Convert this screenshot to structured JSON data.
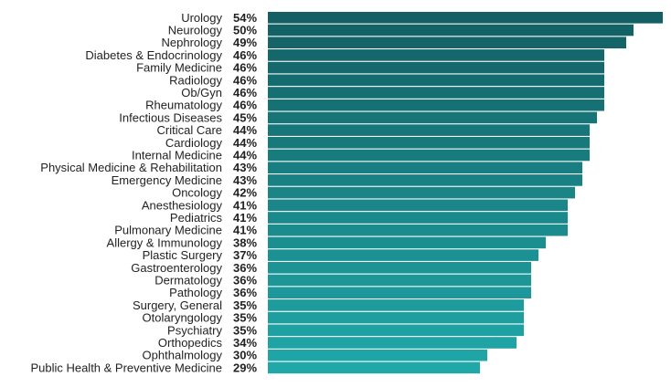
{
  "chart_data": {
    "type": "bar",
    "orientation": "horizontal",
    "title": "",
    "xlabel": "",
    "ylabel": "",
    "grid": false,
    "categories": [
      "Urology",
      "Neurology",
      "Nephrology",
      "Diabetes & Endocrinology",
      "Family Medicine",
      "Radiology",
      "Ob/Gyn",
      "Rheumatology",
      "Infectious Diseases",
      "Critical Care",
      "Cardiology",
      "Internal Medicine",
      "Physical Medicine & Rehabilitation",
      "Emergency Medicine",
      "Oncology",
      "Anesthesiology",
      "Pediatrics",
      "Pulmonary Medicine",
      "Allergy & Immunology",
      "Plastic Surgery",
      "Gastroenterology",
      "Dermatology",
      "Pathology",
      "Surgery, General",
      "Otolaryngology",
      "Psychiatry",
      "Orthopedics",
      "Ophthalmology",
      "Public Health & Preventive Medicine"
    ],
    "values": [
      54,
      50,
      49,
      46,
      46,
      46,
      46,
      46,
      45,
      44,
      44,
      44,
      43,
      43,
      42,
      41,
      41,
      41,
      38,
      37,
      36,
      36,
      36,
      35,
      35,
      35,
      34,
      30,
      29
    ],
    "labels": [
      "54%",
      "50%",
      "49%",
      "46%",
      "46%",
      "46%",
      "46%",
      "46%",
      "45%",
      "44%",
      "44%",
      "44%",
      "43%",
      "43%",
      "42%",
      "41%",
      "41%",
      "41%",
      "38%",
      "37%",
      "36%",
      "36%",
      "36%",
      "35%",
      "35%",
      "35%",
      "34%",
      "30%",
      "29%"
    ],
    "unit": "%",
    "colors": {
      "top": "#135f63",
      "bottom": "#20a8a9"
    }
  }
}
